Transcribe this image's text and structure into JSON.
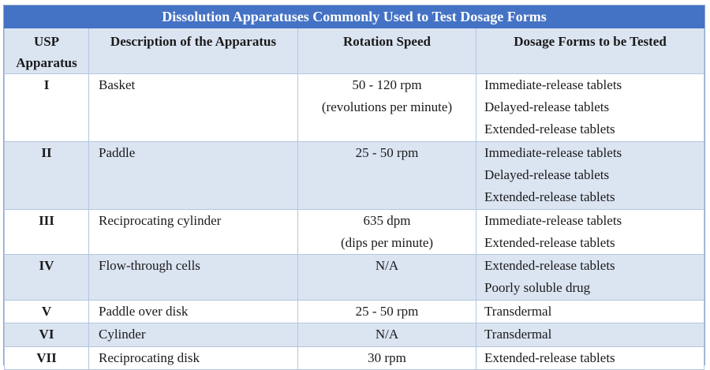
{
  "title": "Dissolution Apparatuses Commonly Used to Test Dosage Forms",
  "headers": {
    "col1_line1": "USP",
    "col1_line2": "Apparatus",
    "col2": "Description of the Apparatus",
    "col3": "Rotation Speed",
    "col4": "Dosage Forms to be Tested"
  },
  "rows": [
    {
      "apparatus": "I",
      "description": "Basket",
      "speed": [
        "50 - 120 rpm",
        "(revolutions per minute)"
      ],
      "forms": [
        "Immediate-release tablets",
        "Delayed-release tablets",
        "Extended-release tablets"
      ]
    },
    {
      "apparatus": "II",
      "description": "Paddle",
      "speed": [
        "25 - 50 rpm"
      ],
      "forms": [
        "Immediate-release tablets",
        "Delayed-release tablets",
        "Extended-release tablets"
      ]
    },
    {
      "apparatus": "III",
      "description": "Reciprocating cylinder",
      "speed": [
        "635 dpm",
        "(dips per minute)"
      ],
      "forms": [
        "Immediate-release tablets",
        "Extended-release tablets"
      ]
    },
    {
      "apparatus": "IV",
      "description": "Flow-through cells",
      "speed": [
        "N/A"
      ],
      "forms": [
        "Extended-release tablets",
        "Poorly soluble drug"
      ]
    },
    {
      "apparatus": "V",
      "description": "Paddle over disk",
      "speed": [
        "25 - 50 rpm"
      ],
      "forms": [
        "Transdermal"
      ]
    },
    {
      "apparatus": "VI",
      "description": "Cylinder",
      "speed": [
        "N/A"
      ],
      "forms": [
        "Transdermal"
      ]
    },
    {
      "apparatus": "VII",
      "description": "Reciprocating disk",
      "speed": [
        "30 rpm"
      ],
      "forms": [
        "Extended-release tablets"
      ]
    }
  ]
}
